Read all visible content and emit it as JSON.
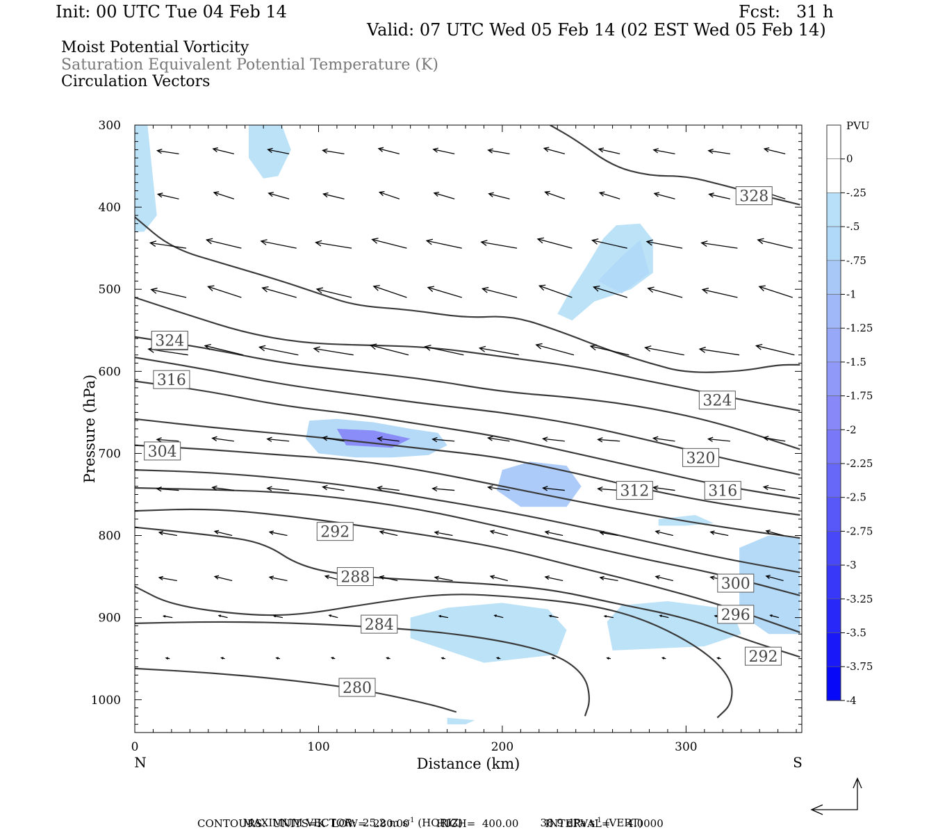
{
  "header": {
    "init": "Init: 00 UTC Tue 04 Feb 14",
    "fcst": "Fcst:   31 h",
    "valid": "Valid: 07 UTC Wed 05 Feb 14 (02 EST Wed 05 Feb 14)",
    "line1": "Moist Potential Vorticity",
    "line2": "Saturation Equivalent Potential Temperature (K)",
    "line3": "Circulation Vectors"
  },
  "chart_data": {
    "type": "contour",
    "xlabel": "Distance (km)",
    "ylabel": "Pressure (hPa)",
    "xlim": [
      0,
      363
    ],
    "ylim": [
      1040,
      300
    ],
    "xticks": [
      0,
      100,
      200,
      300
    ],
    "yticks": [
      300,
      400,
      500,
      600,
      700,
      800,
      900,
      1000
    ],
    "x_end_labels": {
      "left": "N",
      "right": "S"
    },
    "colorbar": {
      "unit": "PVU",
      "levels": [
        "0",
        "-.25",
        "-.5",
        "-.75",
        "-1",
        "-1.25",
        "-1.5",
        "-1.75",
        "-2",
        "-2.25",
        "-2.5",
        "-2.75",
        "-3",
        "-3.25",
        "-3.5",
        "-3.75",
        "-4"
      ],
      "colors": [
        "#ffffff",
        "#ffffff",
        "#b8e0f8",
        "#b0d8f8",
        "#a8c8f8",
        "#a0b8f8",
        "#98a8f8",
        "#9098f8",
        "#8888f8",
        "#7878f8",
        "#6868f8",
        "#5858f8",
        "#4848f8",
        "#3838f8",
        "#2828f8",
        "#1818f8",
        "#0808f8"
      ]
    },
    "contours": [
      {
        "label": "280",
        "labels_at": [
          [
            121,
            985
          ]
        ],
        "points": [
          [
            0,
            962
          ],
          [
            40,
            967
          ],
          [
            80,
            975
          ],
          [
            120,
            986
          ],
          [
            160,
            1005
          ],
          [
            175,
            1015
          ]
        ]
      },
      {
        "label": "284",
        "labels_at": [
          [
            133,
            908
          ]
        ],
        "points": [
          [
            0,
            907
          ],
          [
            40,
            905
          ],
          [
            80,
            906
          ],
          [
            120,
            910
          ],
          [
            160,
            916
          ],
          [
            200,
            928
          ],
          [
            230,
            945
          ],
          [
            245,
            970
          ],
          [
            248,
            1000
          ],
          [
            245,
            1020
          ]
        ]
      },
      {
        "label": "288",
        "labels_at": [
          [
            120,
            850
          ]
        ],
        "points": [
          [
            0,
            862
          ],
          [
            20,
            885
          ],
          [
            60,
            897
          ],
          [
            90,
            897
          ],
          [
            130,
            882
          ],
          [
            170,
            870
          ],
          [
            210,
            875
          ],
          [
            250,
            885
          ],
          [
            280,
            904
          ],
          [
            310,
            940
          ],
          [
            325,
            975
          ],
          [
            325,
            1005
          ],
          [
            317,
            1022
          ]
        ]
      },
      {
        "label": "292",
        "labels_at": [
          [
            109,
            795
          ],
          [
            342,
            947
          ]
        ],
        "points": [
          [
            0,
            790
          ],
          [
            40,
            799
          ],
          [
            70,
            808
          ],
          [
            90,
            838
          ],
          [
            120,
            850
          ],
          [
            160,
            855
          ],
          [
            200,
            860
          ],
          [
            230,
            867
          ],
          [
            260,
            882
          ],
          [
            300,
            900
          ],
          [
            330,
            925
          ],
          [
            362,
            948
          ]
        ]
      },
      {
        "label": "296",
        "labels_at": [
          [
            327,
            896
          ]
        ],
        "points": [
          [
            0,
            770
          ],
          [
            40,
            767
          ],
          [
            80,
            775
          ],
          [
            120,
            787
          ],
          [
            160,
            800
          ],
          [
            200,
            815
          ],
          [
            240,
            838
          ],
          [
            280,
            860
          ],
          [
            320,
            885
          ],
          [
            362,
            918
          ]
        ]
      },
      {
        "label": "300",
        "labels_at": [
          [
            327,
            858
          ]
        ],
        "points": [
          [
            0,
            742
          ],
          [
            40,
            744
          ],
          [
            80,
            747
          ],
          [
            120,
            756
          ],
          [
            160,
            770
          ],
          [
            200,
            790
          ],
          [
            240,
            810
          ],
          [
            280,
            830
          ],
          [
            320,
            848
          ],
          [
            362,
            873
          ]
        ]
      },
      {
        "label": "",
        "labels_at": [],
        "points": [
          [
            0,
            720
          ],
          [
            40,
            723
          ],
          [
            80,
            730
          ],
          [
            120,
            740
          ],
          [
            160,
            755
          ],
          [
            200,
            770
          ],
          [
            240,
            788
          ],
          [
            280,
            808
          ],
          [
            320,
            828
          ],
          [
            362,
            845
          ]
        ]
      },
      {
        "label": "304",
        "labels_at": [
          [
            15,
            697
          ]
        ],
        "points": [
          [
            0,
            690
          ],
          [
            40,
            695
          ],
          [
            80,
            702
          ],
          [
            120,
            708
          ],
          [
            160,
            722
          ],
          [
            200,
            740
          ],
          [
            240,
            758
          ],
          [
            280,
            775
          ],
          [
            320,
            790
          ],
          [
            362,
            803
          ]
        ]
      },
      {
        "label": "",
        "labels_at": [],
        "points": [
          [
            0,
            658
          ],
          [
            40,
            668
          ],
          [
            80,
            676
          ],
          [
            120,
            685
          ],
          [
            160,
            695
          ],
          [
            200,
            705
          ],
          [
            240,
            724
          ],
          [
            280,
            745
          ],
          [
            320,
            762
          ],
          [
            362,
            775
          ]
        ]
      },
      {
        "label": "312",
        "labels_at": [
          [
            272,
            745
          ]
        ],
        "points": [
          [
            0,
            612
          ],
          [
            40,
            624
          ],
          [
            80,
            642
          ],
          [
            120,
            652
          ],
          [
            160,
            666
          ],
          [
            200,
            680
          ],
          [
            240,
            700
          ],
          [
            280,
            720
          ],
          [
            320,
            740
          ],
          [
            362,
            755
          ]
        ]
      },
      {
        "label": "316",
        "labels_at": [
          [
            20,
            610
          ],
          [
            320,
            745
          ]
        ],
        "points": [
          [
            0,
            583
          ],
          [
            40,
            598
          ],
          [
            80,
            616
          ],
          [
            120,
            628
          ],
          [
            160,
            640
          ],
          [
            200,
            650
          ],
          [
            240,
            664
          ],
          [
            280,
            684
          ],
          [
            320,
            706
          ],
          [
            362,
            726
          ]
        ]
      },
      {
        "label": "320",
        "labels_at": [
          [
            19,
            563
          ],
          [
            308,
            705
          ]
        ],
        "points": [
          [
            0,
            558
          ],
          [
            40,
            572
          ],
          [
            80,
            590
          ],
          [
            120,
            600
          ],
          [
            160,
            610
          ],
          [
            200,
            625
          ],
          [
            240,
            632
          ],
          [
            280,
            644
          ],
          [
            320,
            664
          ],
          [
            362,
            695
          ]
        ]
      },
      {
        "label": "",
        "labels_at": [],
        "points": [
          [
            0,
            510
          ],
          [
            30,
            532
          ],
          [
            60,
            553
          ],
          [
            90,
            565
          ],
          [
            120,
            568
          ],
          [
            160,
            570
          ],
          [
            200,
            582
          ],
          [
            240,
            594
          ],
          [
            280,
            612
          ],
          [
            320,
            630
          ],
          [
            362,
            648
          ]
        ]
      },
      {
        "label": "324",
        "labels_at": [
          [
            19,
            562
          ],
          [
            317,
            635
          ]
        ],
        "points": [
          [
            0,
            412
          ],
          [
            20,
            450
          ],
          [
            50,
            470
          ],
          [
            80,
            490
          ],
          [
            100,
            505
          ],
          [
            120,
            520
          ],
          [
            150,
            525
          ],
          [
            180,
            535
          ],
          [
            205,
            532
          ],
          [
            230,
            550
          ],
          [
            260,
            576
          ],
          [
            280,
            590
          ],
          [
            300,
            602
          ],
          [
            330,
            600
          ],
          [
            350,
            592
          ],
          [
            362,
            592
          ]
        ]
      },
      {
        "label": "328",
        "labels_at": [
          [
            337,
            386
          ]
        ],
        "points": [
          [
            226,
            300
          ],
          [
            240,
            318
          ],
          [
            260,
            350
          ],
          [
            280,
            362
          ],
          [
            300,
            362
          ],
          [
            320,
            373
          ],
          [
            340,
            385
          ],
          [
            362,
            397
          ]
        ]
      }
    ],
    "pv_fill_regions": [
      {
        "level": "-.5",
        "points": [
          [
            62,
            300
          ],
          [
            80,
            300
          ],
          [
            85,
            330
          ],
          [
            78,
            362
          ],
          [
            70,
            365
          ],
          [
            62,
            340
          ]
        ]
      },
      {
        "level": "-.5",
        "points": [
          [
            0,
            280
          ],
          [
            6,
            280
          ],
          [
            12,
            410
          ],
          [
            5,
            430
          ],
          [
            0,
            430
          ]
        ]
      },
      {
        "level": "-.5",
        "points": [
          [
            230,
            530
          ],
          [
            235,
            510
          ],
          [
            245,
            475
          ],
          [
            255,
            438
          ],
          [
            262,
            422
          ],
          [
            275,
            420
          ],
          [
            282,
            440
          ],
          [
            282,
            480
          ],
          [
            270,
            500
          ],
          [
            250,
            515
          ],
          [
            238,
            538
          ]
        ]
      },
      {
        "level": "-.75",
        "points": [
          [
            252,
            490
          ],
          [
            265,
            460
          ],
          [
            275,
            440
          ],
          [
            280,
            480
          ],
          [
            265,
            505
          ]
        ]
      },
      {
        "level": "-.75",
        "points": [
          [
            95,
            660
          ],
          [
            110,
            658
          ],
          [
            130,
            662
          ],
          [
            150,
            670
          ],
          [
            165,
            675
          ],
          [
            170,
            690
          ],
          [
            160,
            702
          ],
          [
            140,
            705
          ],
          [
            120,
            705
          ],
          [
            100,
            700
          ],
          [
            93,
            682
          ]
        ]
      },
      {
        "level": "-2",
        "points": [
          [
            110,
            670
          ],
          [
            130,
            672
          ],
          [
            150,
            682
          ],
          [
            140,
            693
          ],
          [
            115,
            690
          ]
        ]
      },
      {
        "level": "-1",
        "points": [
          [
            200,
            720
          ],
          [
            215,
            710
          ],
          [
            235,
            715
          ],
          [
            243,
            740
          ],
          [
            235,
            765
          ],
          [
            210,
            765
          ],
          [
            197,
            745
          ]
        ]
      },
      {
        "level": "-.5",
        "points": [
          [
            150,
            900
          ],
          [
            170,
            888
          ],
          [
            200,
            882
          ],
          [
            225,
            890
          ],
          [
            235,
            915
          ],
          [
            230,
            945
          ],
          [
            190,
            955
          ],
          [
            150,
            925
          ]
        ]
      },
      {
        "level": "-.5",
        "points": [
          [
            257,
            905
          ],
          [
            265,
            885
          ],
          [
            290,
            880
          ],
          [
            325,
            890
          ],
          [
            330,
            920
          ],
          [
            310,
            935
          ],
          [
            260,
            940
          ]
        ]
      },
      {
        "level": "-.75",
        "points": [
          [
            329,
            815
          ],
          [
            345,
            800
          ],
          [
            362,
            803
          ],
          [
            362,
            920
          ],
          [
            345,
            920
          ],
          [
            329,
            895
          ]
        ]
      },
      {
        "level": "-.5",
        "points": [
          [
            170,
            1022
          ],
          [
            185,
            1025
          ],
          [
            180,
            1030
          ],
          [
            170,
            1030
          ]
        ]
      },
      {
        "level": "-.5",
        "points": [
          [
            285,
            780
          ],
          [
            305,
            775
          ],
          [
            315,
            785
          ],
          [
            300,
            788
          ],
          [
            285,
            788
          ]
        ]
      }
    ],
    "vectors_max": {
      "horiz": "25.2 m s-1",
      "vert": "38.9 dPa s-1"
    }
  },
  "footer": {
    "max_vector_a": "MAXIMUM VECTOR:  25.2 m s",
    "sup1": "-1",
    "max_vector_b": " (HORIZ)",
    "vert_a": "38.9 dPa s",
    "sup2": "-1",
    "vert_b": " (VERT)",
    "contours": "CONTOURS:  UNITS=K  LOW=  280.00        HIGH=  400.00        INTERVAL=     4.0000"
  }
}
